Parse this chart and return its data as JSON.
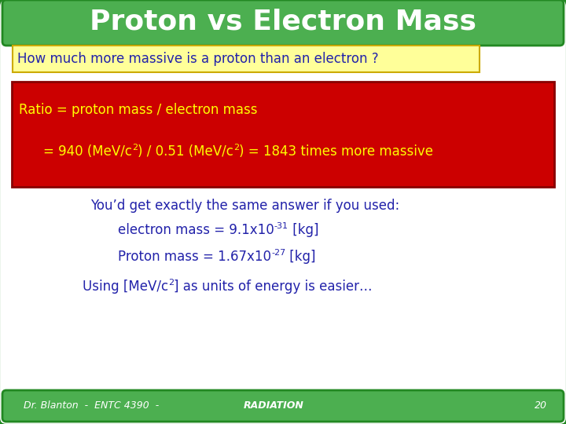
{
  "title": "Proton vs Electron Mass",
  "title_bg": "#4caf50",
  "title_color": "#ffffff",
  "main_bg": "#ffffff",
  "outer_bg": "#4caf50",
  "question_text": "How much more massive is a proton than an electron ?",
  "question_bg": "#ffff99",
  "question_border": "#ccaa00",
  "question_text_color": "#2222aa",
  "red_box_bg": "#cc0000",
  "red_box_line1": "Ratio = proton mass / electron mass",
  "red_box_text_color": "#ffff00",
  "body_text_color": "#2222aa",
  "line_you": "You’d get exactly the same answer if you used:",
  "footer_text": "Dr. Blanton  -  ENTC 4390  -",
  "footer_radiation": "RADIATION",
  "footer_page": "20",
  "footer_bg": "#4caf50",
  "footer_text_color": "#ffffff"
}
